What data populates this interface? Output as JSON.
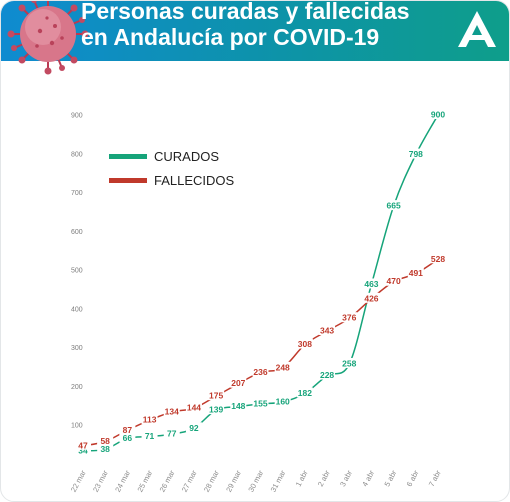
{
  "header": {
    "title_line1": "Personas curadas y fallecidas",
    "title_line2": "en Andalucía por COVID-19",
    "logo_icon": "junta-andalucia-logo-icon",
    "decoration_icon": "coronavirus-icon"
  },
  "chart_data": {
    "type": "line",
    "title": "Personas curadas y fallecidas en Andalucía por COVID-19",
    "categories": [
      "22 mar",
      "23 mar",
      "24 mar",
      "25 mar",
      "26 mar",
      "27 mar",
      "28 mar",
      "29 mar",
      "30 mar",
      "31 mar",
      "1 abr",
      "2 abr",
      "3 abr",
      "4 abr",
      "5 abr",
      "6 abr",
      "7 abr"
    ],
    "ylim": [
      0,
      900
    ],
    "yticks": [
      100,
      200,
      300,
      400,
      500,
      600,
      700,
      800,
      900
    ],
    "grid": false,
    "legend_position": "top-left",
    "series": [
      {
        "name": "CURADOS",
        "color": "#16a47a",
        "values": [
          34,
          38,
          66,
          71,
          77,
          92,
          139,
          148,
          155,
          160,
          182,
          228,
          258,
          463,
          665,
          798,
          900
        ]
      },
      {
        "name": "FALLECIDOS",
        "color": "#c0392b",
        "values": [
          47,
          58,
          87,
          113,
          134,
          144,
          175,
          207,
          236,
          248,
          308,
          343,
          376,
          426,
          470,
          491,
          528
        ]
      }
    ]
  }
}
